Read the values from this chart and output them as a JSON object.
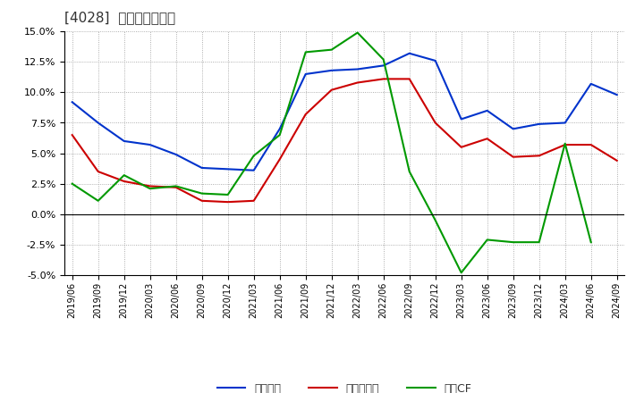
{
  "title": "[4028]  マージンの推移",
  "x_labels": [
    "2019/06",
    "2019/09",
    "2019/12",
    "2020/03",
    "2020/06",
    "2020/09",
    "2020/12",
    "2021/03",
    "2021/06",
    "2021/09",
    "2021/12",
    "2022/03",
    "2022/06",
    "2022/09",
    "2022/12",
    "2023/03",
    "2023/06",
    "2023/09",
    "2023/12",
    "2024/03",
    "2024/06",
    "2024/09"
  ],
  "keijyo_rieki": [
    9.2,
    7.5,
    6.0,
    5.7,
    4.9,
    3.8,
    3.7,
    3.6,
    7.0,
    11.5,
    11.8,
    11.9,
    12.2,
    13.2,
    12.6,
    7.8,
    8.5,
    7.0,
    7.4,
    7.5,
    10.7,
    9.8
  ],
  "touki_jurieki": [
    6.5,
    3.5,
    2.7,
    2.3,
    2.2,
    1.1,
    1.0,
    1.1,
    4.5,
    8.2,
    10.2,
    10.8,
    11.1,
    11.1,
    7.5,
    5.5,
    6.2,
    4.7,
    4.8,
    5.7,
    5.7,
    4.4
  ],
  "eigyo_cf": [
    2.5,
    1.1,
    3.2,
    2.1,
    2.3,
    1.7,
    1.6,
    4.8,
    6.5,
    13.3,
    13.5,
    14.9,
    12.7,
    3.5,
    -0.5,
    -4.8,
    -2.1,
    -2.3,
    -2.3,
    5.8,
    -2.3,
    null
  ],
  "keijyo_color": "#0033cc",
  "touki_color": "#cc0000",
  "eigyo_color": "#009900",
  "ylim": [
    -5.0,
    15.0
  ],
  "yticks": [
    -5.0,
    -2.5,
    0.0,
    2.5,
    5.0,
    7.5,
    10.0,
    12.5,
    15.0
  ],
  "background_color": "#ffffff",
  "plot_bg_color": "#ffffff",
  "grid_color": "#999999",
  "title_color": "#333333",
  "legend_labels": [
    "経常利益",
    "当期純利益",
    "営業CF"
  ]
}
